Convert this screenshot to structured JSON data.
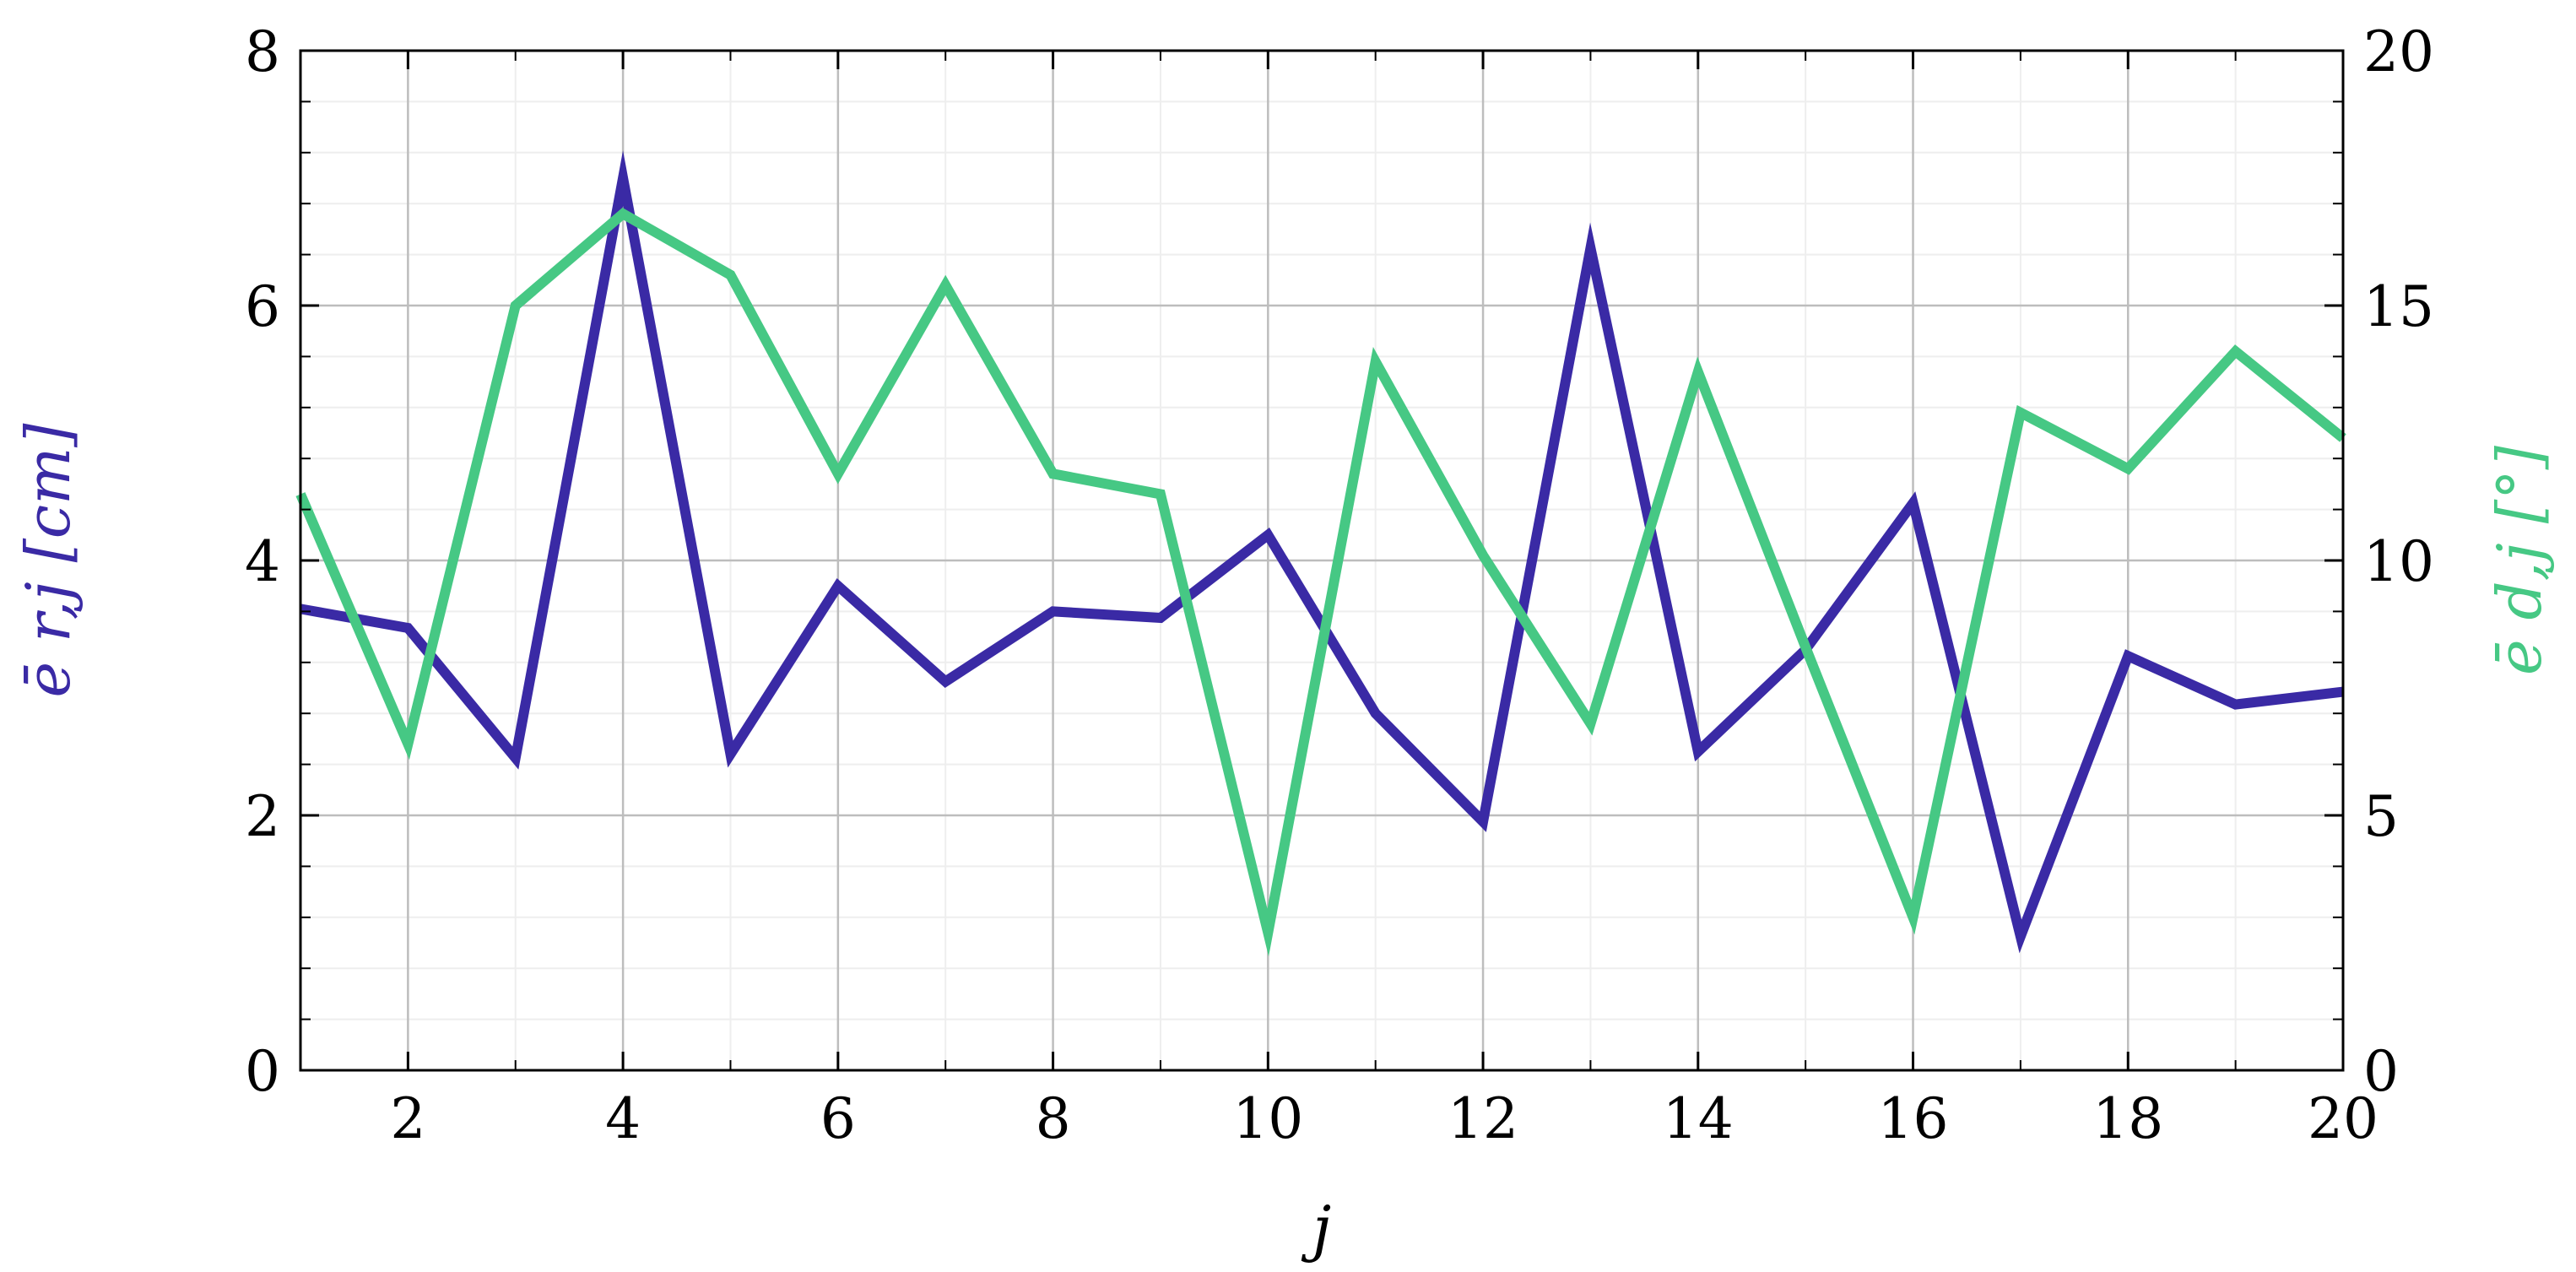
{
  "chart_data": {
    "type": "line",
    "x": [
      1,
      2,
      3,
      4,
      5,
      6,
      7,
      8,
      9,
      10,
      11,
      12,
      13,
      14,
      15,
      16,
      17,
      18,
      19,
      20
    ],
    "xlabel": "j",
    "xlim": [
      1,
      20
    ],
    "xticks": [
      2,
      4,
      6,
      8,
      10,
      12,
      14,
      16,
      18,
      20
    ],
    "y_left": {
      "label": "ē r,j [cm]",
      "ylim": [
        0,
        8
      ],
      "ticks": [
        0,
        2,
        4,
        6,
        8
      ],
      "color": "#3a2aa5"
    },
    "y_right": {
      "label": "ē d,j [°]",
      "ylim": [
        0,
        20
      ],
      "ticks": [
        0,
        5,
        10,
        15,
        20
      ],
      "color": "#46c884"
    },
    "series": [
      {
        "axis": "left",
        "color": "#3a2aa5",
        "values": [
          3.62,
          3.47,
          2.45,
          7.0,
          2.48,
          3.8,
          3.05,
          3.6,
          3.55,
          4.2,
          2.8,
          1.95,
          6.45,
          2.5,
          3.3,
          4.45,
          1.05,
          3.25,
          2.87,
          2.97
        ]
      },
      {
        "axis": "right",
        "color": "#46c884",
        "values": [
          11.3,
          6.4,
          15.0,
          16.8,
          15.6,
          11.7,
          15.4,
          11.7,
          11.3,
          2.7,
          13.9,
          10.1,
          6.8,
          13.7,
          8.3,
          3.0,
          12.9,
          11.8,
          14.1,
          12.4
        ]
      }
    ],
    "grid": true
  }
}
